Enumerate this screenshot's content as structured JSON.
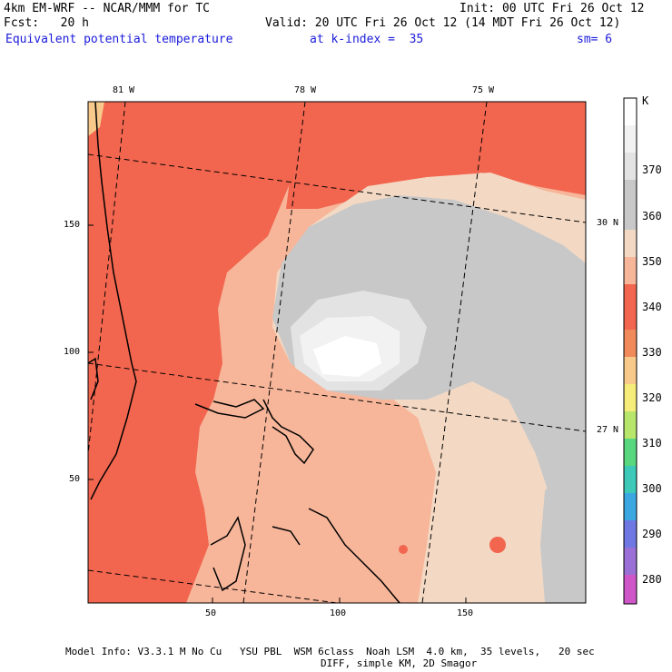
{
  "header": {
    "line1_left": "4km EM-WRF -- NCAR/MMM for TC",
    "line1_right": "Init: 00 UTC Fri 26 Oct 12",
    "line2_left": "Fcst:   20 h",
    "line2_right": "Valid: 20 UTC Fri 26 Oct 12 (14 MDT Fri 26 Oct 12)",
    "line3_left": "Equivalent potential temperature",
    "line3_mid": "at k-index =  35",
    "line3_right": "sm= 6"
  },
  "map": {
    "x_ticks": [
      "50",
      "100",
      "150"
    ],
    "y_ticks": [
      "150",
      "100",
      "50"
    ],
    "lon_labels": [
      "81 W",
      "78 W",
      "75 W"
    ],
    "lat_labels": [
      "30 N",
      "27 N"
    ]
  },
  "colorbar": {
    "unit": "K",
    "labels": [
      "370",
      "360",
      "350",
      "340",
      "330",
      "320",
      "310",
      "300",
      "290",
      "280"
    ],
    "colors": [
      "#ffffff",
      "#f2f2f2",
      "#e3e3e3",
      "#c8c8c8",
      "#f3d9c4",
      "#f7b69a",
      "#f2664f",
      "#f08a5a",
      "#f7c98a",
      "#f5ec7a",
      "#b7e66b",
      "#58d77e",
      "#3cc9b8",
      "#3aa7e0",
      "#6f77e3",
      "#9a6fd6",
      "#cf56c8"
    ]
  },
  "footer": {
    "line1": "Model Info: V3.3.1 M No Cu   YSU PBL  WSM 6class  Noah LSM  4.0 km,  35 levels,   20 sec",
    "line2": "DIFF, simple KM, 2D Smagor"
  }
}
